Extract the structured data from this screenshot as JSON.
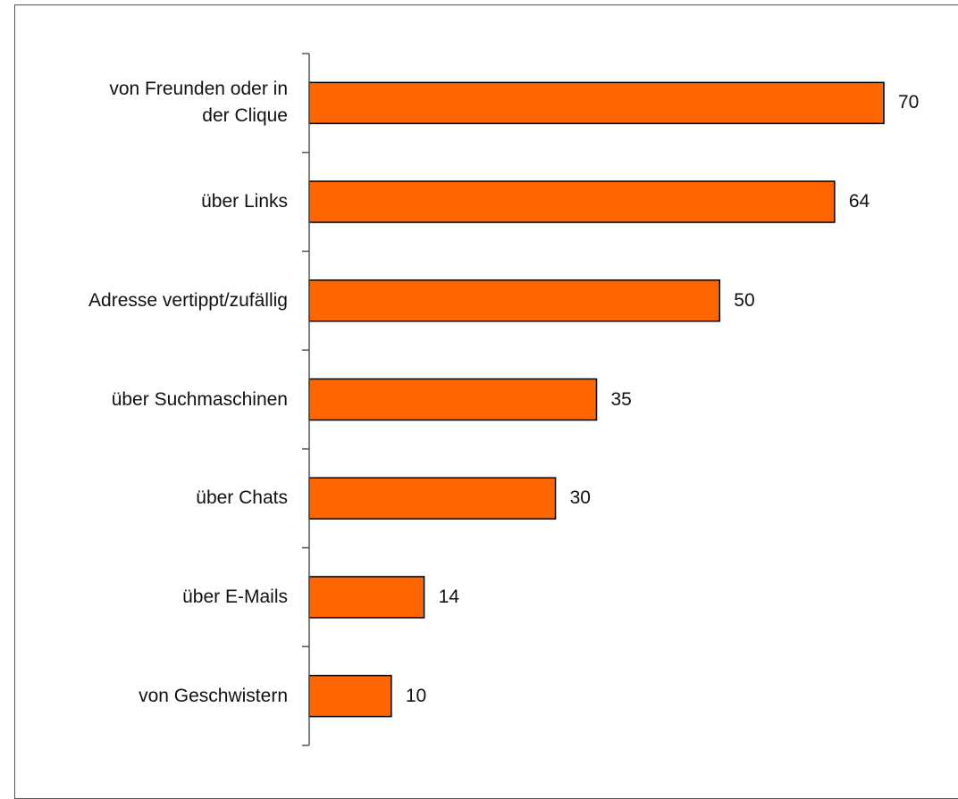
{
  "chart_data": {
    "type": "bar",
    "orientation": "horizontal",
    "categories": [
      "von Freunden oder in\nder Clique",
      "über Links",
      "Adresse vertippt/zufällig",
      "über Suchmaschinen",
      "über Chats",
      "über E-Mails",
      "von Geschwistern"
    ],
    "values": [
      70,
      64,
      50,
      35,
      30,
      14,
      10
    ],
    "color": "#ff6600"
  }
}
